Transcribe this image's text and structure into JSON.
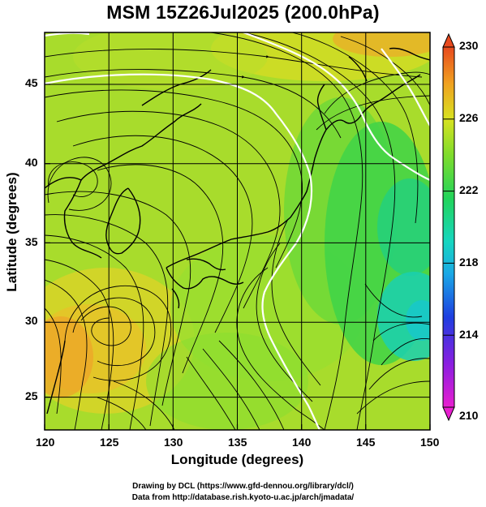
{
  "title": "MSM 15Z26Jul2025 (200.0hPa)",
  "x_axis_title": "Longitude (degrees)",
  "y_axis_title": "Latitude  (degrees)",
  "x_ticks": [
    "120",
    "125",
    "130",
    "135",
    "140",
    "145",
    "150"
  ],
  "y_ticks": [
    "45",
    "40",
    "35",
    "30",
    "25"
  ],
  "colorbar_ticks": [
    "230",
    "226",
    "222",
    "218",
    "214",
    "210"
  ],
  "credits": {
    "line1": "Drawing by DCL (https://www.gfd-dennou.org/library/dcl/)",
    "line2": "Data from http://database.rish.kyoto-u.ac.jp/arch/jmadata/"
  },
  "chart_data": {
    "type": "heatmap",
    "title": "MSM 15Z26Jul2025 (200.0hPa)",
    "xlabel": "Longitude (degrees)",
    "ylabel": "Latitude  (degrees)",
    "xlim": [
      120,
      150
    ],
    "ylim": [
      22.4,
      47.6
    ],
    "colorbar_range": [
      210,
      230
    ],
    "colorbar_ticks": [
      230,
      226,
      222,
      218,
      214,
      210
    ],
    "colors": {
      "low": "#e81fd0",
      "mid_low": "#1e3ee0",
      "mid": "#16d6c0",
      "mid_high": "#2fd84a",
      "high_mid": "#d8e220",
      "high": "#e84a1e",
      "coastline": "#000000",
      "contour": "#ffffff"
    },
    "layers": [
      "temperature shading",
      "streamlines",
      "coastlines",
      "white contour lines",
      "graticule 5-degree grid"
    ]
  }
}
